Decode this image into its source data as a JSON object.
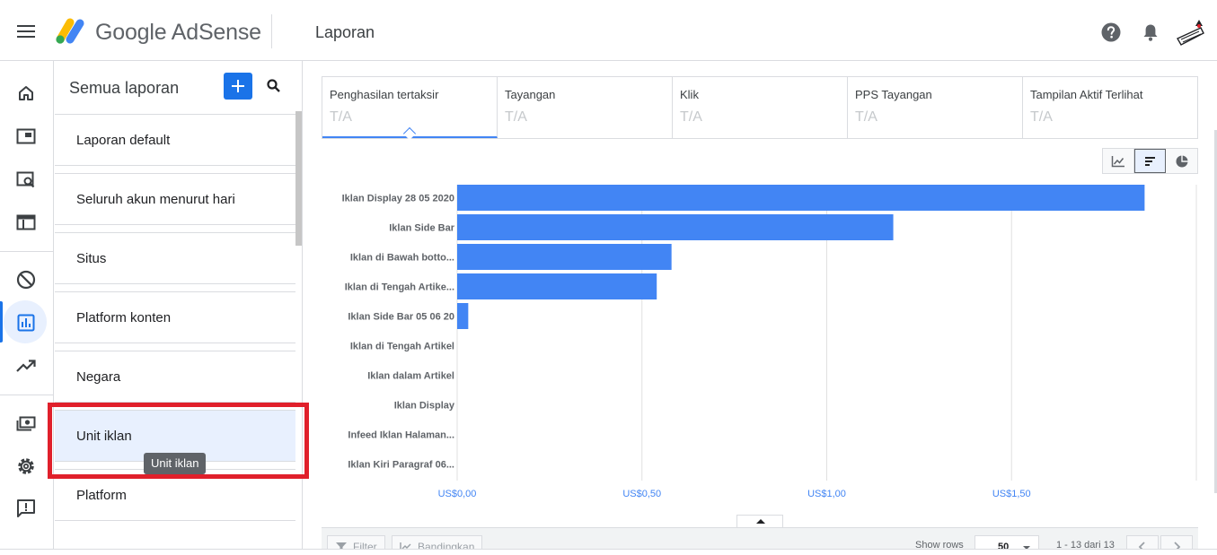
{
  "header": {
    "brand": "Google AdSense",
    "page_title": "Laporan",
    "icons": [
      "menu-icon",
      "help-icon",
      "notifications-icon",
      "account-avatar"
    ]
  },
  "rail": {
    "items": [
      "home-icon",
      "sites-icon",
      "ad-review-icon",
      "ads-icon",
      "blocking-icon",
      "reports-icon",
      "optimization-icon",
      "payments-icon",
      "settings-icon",
      "feedback-icon"
    ],
    "active": "reports-icon",
    "accent": "#1a73e8"
  },
  "panel": {
    "title": "Semua laporan",
    "reports": [
      {
        "label": "Laporan default"
      },
      {
        "label": "Seluruh akun menurut hari"
      },
      {
        "label": "Situs"
      },
      {
        "label": "Platform konten"
      },
      {
        "label": "Negara"
      },
      {
        "label": "Unit iklan"
      },
      {
        "label": "Platform"
      }
    ],
    "selected_index": 5,
    "tooltip": "Unit iklan"
  },
  "metrics": [
    {
      "label": "Penghasilan tertaksir",
      "value": "T/A"
    },
    {
      "label": "Tayangan",
      "value": "T/A"
    },
    {
      "label": "Klik",
      "value": "T/A"
    },
    {
      "label": "PPS Tayangan",
      "value": "T/A"
    },
    {
      "label": "Tampilan Aktif Terlihat",
      "value": "T/A"
    }
  ],
  "chart_toggle": {
    "options": [
      "line-chart-icon",
      "bar-chart-icon",
      "pie-chart-icon"
    ],
    "selected": "bar-chart-icon"
  },
  "chart_data": {
    "type": "bar",
    "orientation": "horizontal",
    "categories": [
      "Iklan Display 28 05 2020",
      "Iklan Side Bar",
      "Iklan di Bawah botto...",
      "Iklan di Tengah Artike...",
      "Iklan Side Bar 05 06 20",
      "Iklan di Tengah Artikel",
      "Iklan dalam Artikel",
      "Iklan Display",
      "Infeed Iklan Halaman...",
      "Iklan Kiri Paragraf 06..."
    ],
    "values": [
      1.86,
      1.18,
      0.58,
      0.54,
      0.03,
      0,
      0,
      0,
      0,
      0
    ],
    "x_ticks": [
      0,
      0.5,
      1.0,
      1.5
    ],
    "x_tick_labels": [
      "US$0,00",
      "US$0,50",
      "US$1,00",
      "US$1,50"
    ],
    "xlim": [
      0,
      2.0
    ],
    "bar_color": "#4285f4",
    "grid": true
  },
  "bottombar": {
    "filter_label": "Filter",
    "compare_label": "Bandingkan",
    "rows_label": "Show rows",
    "rows_value": "50",
    "pager_text": "1 - 13 dari 13"
  }
}
